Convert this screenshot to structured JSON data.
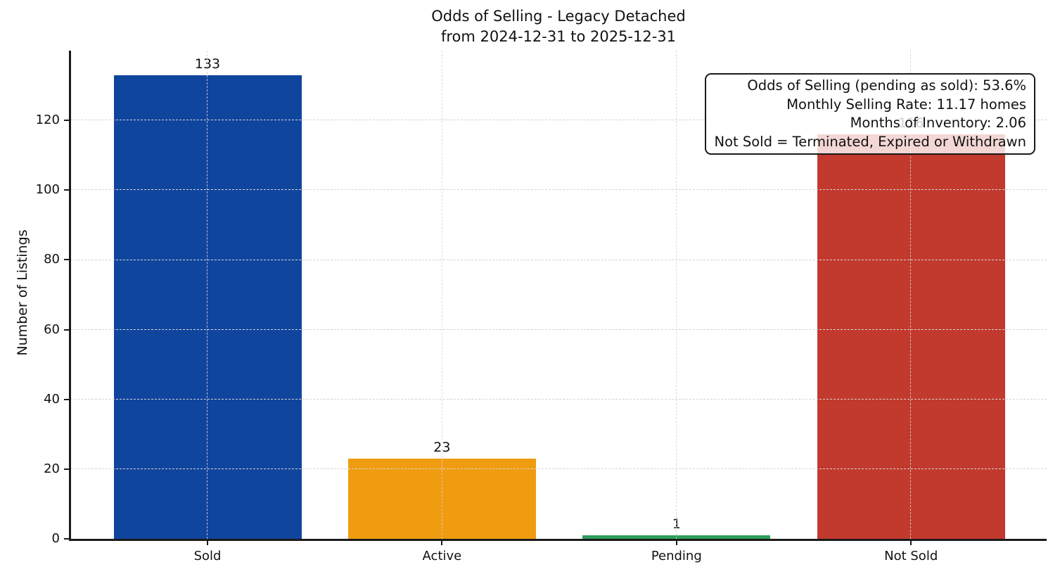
{
  "chart_data": {
    "type": "bar",
    "title": "Odds of Selling - Legacy Detached",
    "subtitle": "from 2024-12-31 to 2025-12-31",
    "categories": [
      "Sold",
      "Active",
      "Pending",
      "Not Sold"
    ],
    "values": [
      133,
      23,
      1,
      116
    ],
    "bar_colors": [
      "#10459e",
      "#f09c10",
      "#2e9e5b",
      "#c23a2d"
    ],
    "xlabel": "",
    "ylabel": "Number of Listings",
    "ylim": [
      0,
      140
    ],
    "yticks": [
      0,
      20,
      40,
      60,
      80,
      100,
      120
    ],
    "grid": true,
    "grid_style": "dashed",
    "legend": "none",
    "annotation_box": {
      "position": "top-right",
      "lines": [
        "Odds of Selling (pending as sold): 53.6%",
        "Monthly Selling Rate: 11.17 homes",
        "Months of Inventory: 2.06",
        "Not Sold = Terminated, Expired or Withdrawn"
      ]
    }
  }
}
